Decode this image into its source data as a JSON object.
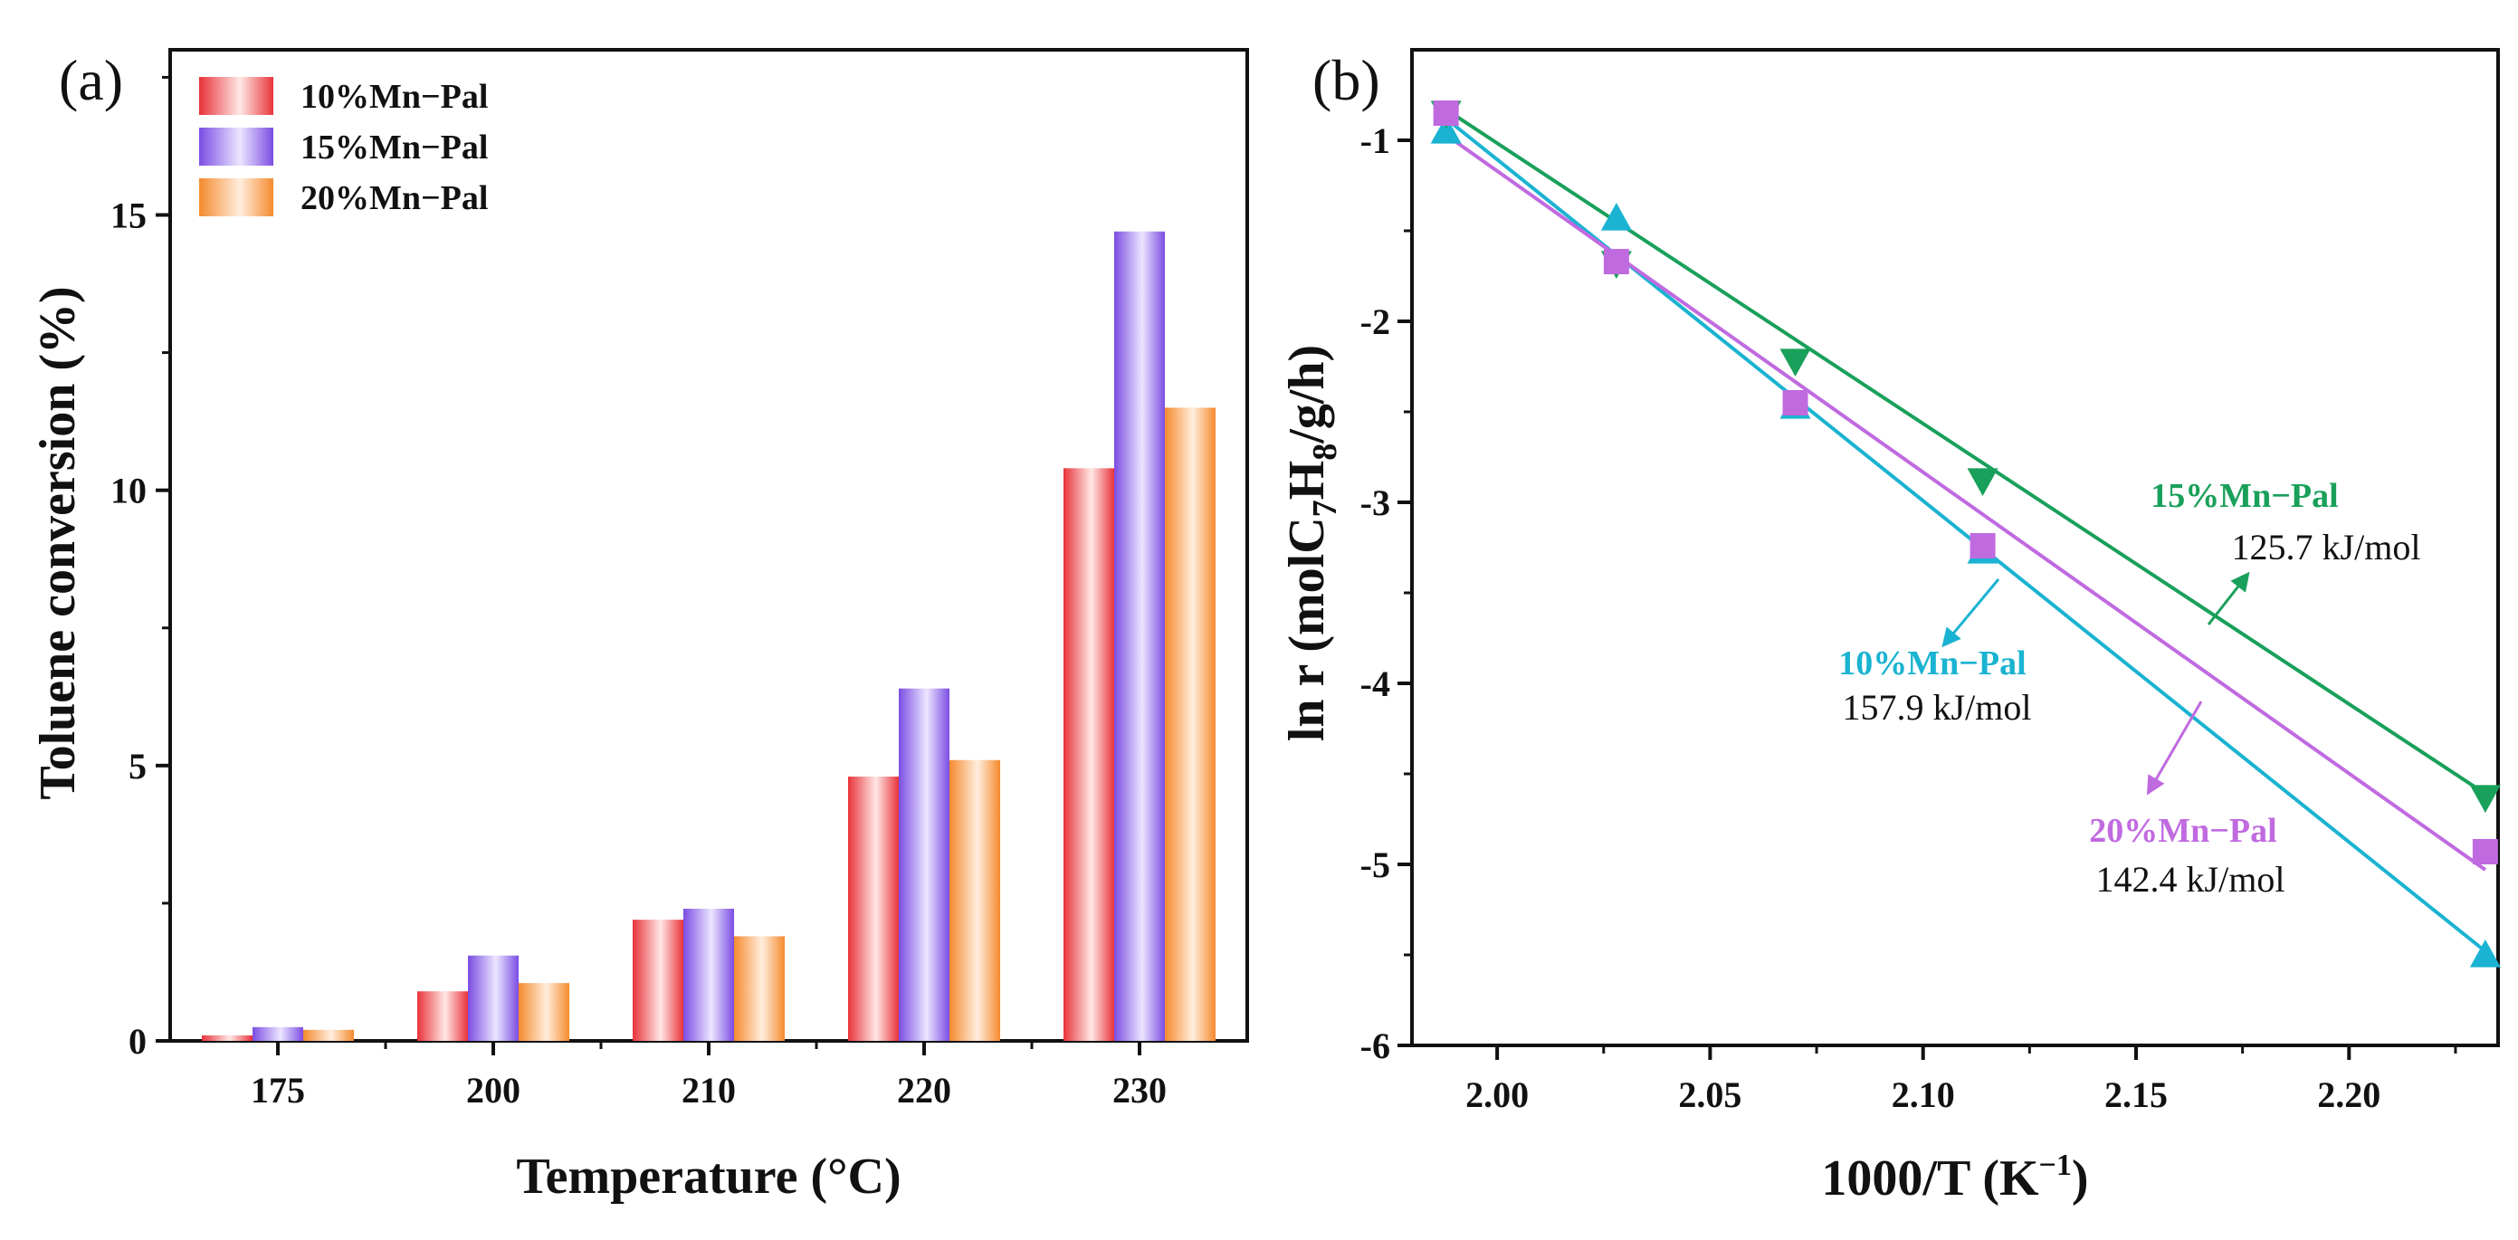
{
  "chart_data": [
    {
      "panel_label": "(a)",
      "type": "bar",
      "xlabel": "Temperature (°C)",
      "ylabel": "Toluene conversion (%)",
      "categories": [
        "175",
        "200",
        "210",
        "220",
        "230"
      ],
      "ylim": [
        0,
        18
      ],
      "yticks": [
        "0",
        "5",
        "10",
        "15"
      ],
      "legend_position": "top-left",
      "series": [
        {
          "name": "10%Mn−Pal",
          "color": "#e8333a",
          "values": [
            0.1,
            0.9,
            2.2,
            4.8,
            10.4
          ]
        },
        {
          "name": "15%Mn−Pal",
          "color": "#7b4de3",
          "values": [
            0.25,
            1.55,
            2.4,
            6.4,
            14.7
          ]
        },
        {
          "name": "20%Mn−Pal",
          "color": "#f58a2e",
          "values": [
            0.2,
            1.05,
            1.9,
            5.1,
            11.5
          ]
        }
      ]
    },
    {
      "panel_label": "(b)",
      "type": "scatter",
      "xlabel_main": "1000/T (K",
      "xlabel_sup": "−1",
      "xlabel_close": ")",
      "ylabel_parts": {
        "main": "ln r (molC",
        "sub1": "7",
        "mid": "H",
        "sub2": "8",
        "end": "/g/h)"
      },
      "xlim": [
        1.98,
        2.235
      ],
      "ylim": [
        -6,
        -0.5
      ],
      "xticks": [
        "2.00",
        "2.05",
        "2.10",
        "2.15",
        "2.20"
      ],
      "yticks": [
        "-1",
        "-2",
        "-3",
        "-4",
        "-5",
        "-6"
      ],
      "series": [
        {
          "name": "10%Mn−Pal",
          "marker": "triangle-up",
          "color": "#1ab3d1",
          "x": [
            1.988,
            2.028,
            2.07,
            2.114,
            2.232
          ],
          "y": [
            -0.95,
            -1.43,
            -2.47,
            -3.27,
            -5.5
          ],
          "fit": {
            "x": [
              1.988,
              2.232
            ],
            "y": [
              -0.88,
              -5.48
            ]
          },
          "activation_energy": "157.9 kJ/mol"
        },
        {
          "name": "15%Mn−Pal",
          "marker": "triangle-down",
          "color": "#19a05a",
          "x": [
            1.988,
            2.028,
            2.07,
            2.114,
            2.232
          ],
          "y": [
            -0.85,
            -1.68,
            -2.22,
            -2.88,
            -4.63
          ],
          "fit": {
            "x": [
              1.988,
              2.232
            ],
            "y": [
              -0.83,
              -4.61
            ]
          },
          "activation_energy": "125.7 kJ/mol"
        },
        {
          "name": "20%Mn−Pal",
          "marker": "square",
          "color": "#c06ae0",
          "x": [
            1.988,
            2.028,
            2.07,
            2.114,
            2.232
          ],
          "y": [
            -0.85,
            -1.67,
            -2.45,
            -3.24,
            -4.93
          ],
          "fit": {
            "x": [
              1.988,
              2.232
            ],
            "y": [
              -0.97,
              -5.03
            ]
          },
          "activation_energy": "142.4 kJ/mol"
        }
      ]
    }
  ]
}
